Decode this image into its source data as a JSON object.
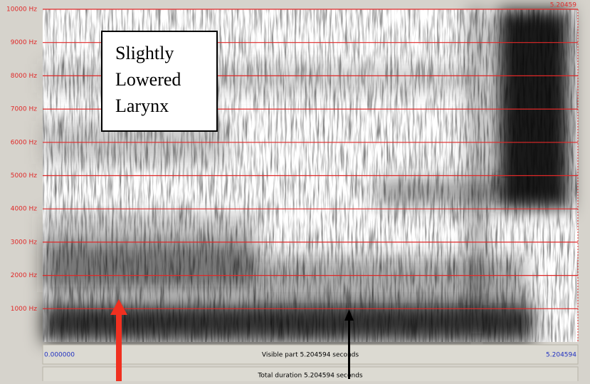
{
  "window": {
    "y_axis_labels": [
      "10000 Hz",
      "9000 Hz",
      "8000 Hz",
      "7000 Hz",
      "6000 Hz",
      "5000 Hz",
      "4000 Hz",
      "3000 Hz",
      "2000 Hz",
      "1000 Hz"
    ],
    "top_right_label": "5.20459",
    "annotation": {
      "lines": [
        "Slightly",
        "Lowered",
        "Larynx"
      ]
    },
    "time_bar": {
      "start": "0.000000",
      "visible": "Visible part 5.204594 seconds",
      "end": "5.204594"
    },
    "total_bar": "Total duration 5.204594 seconds"
  }
}
